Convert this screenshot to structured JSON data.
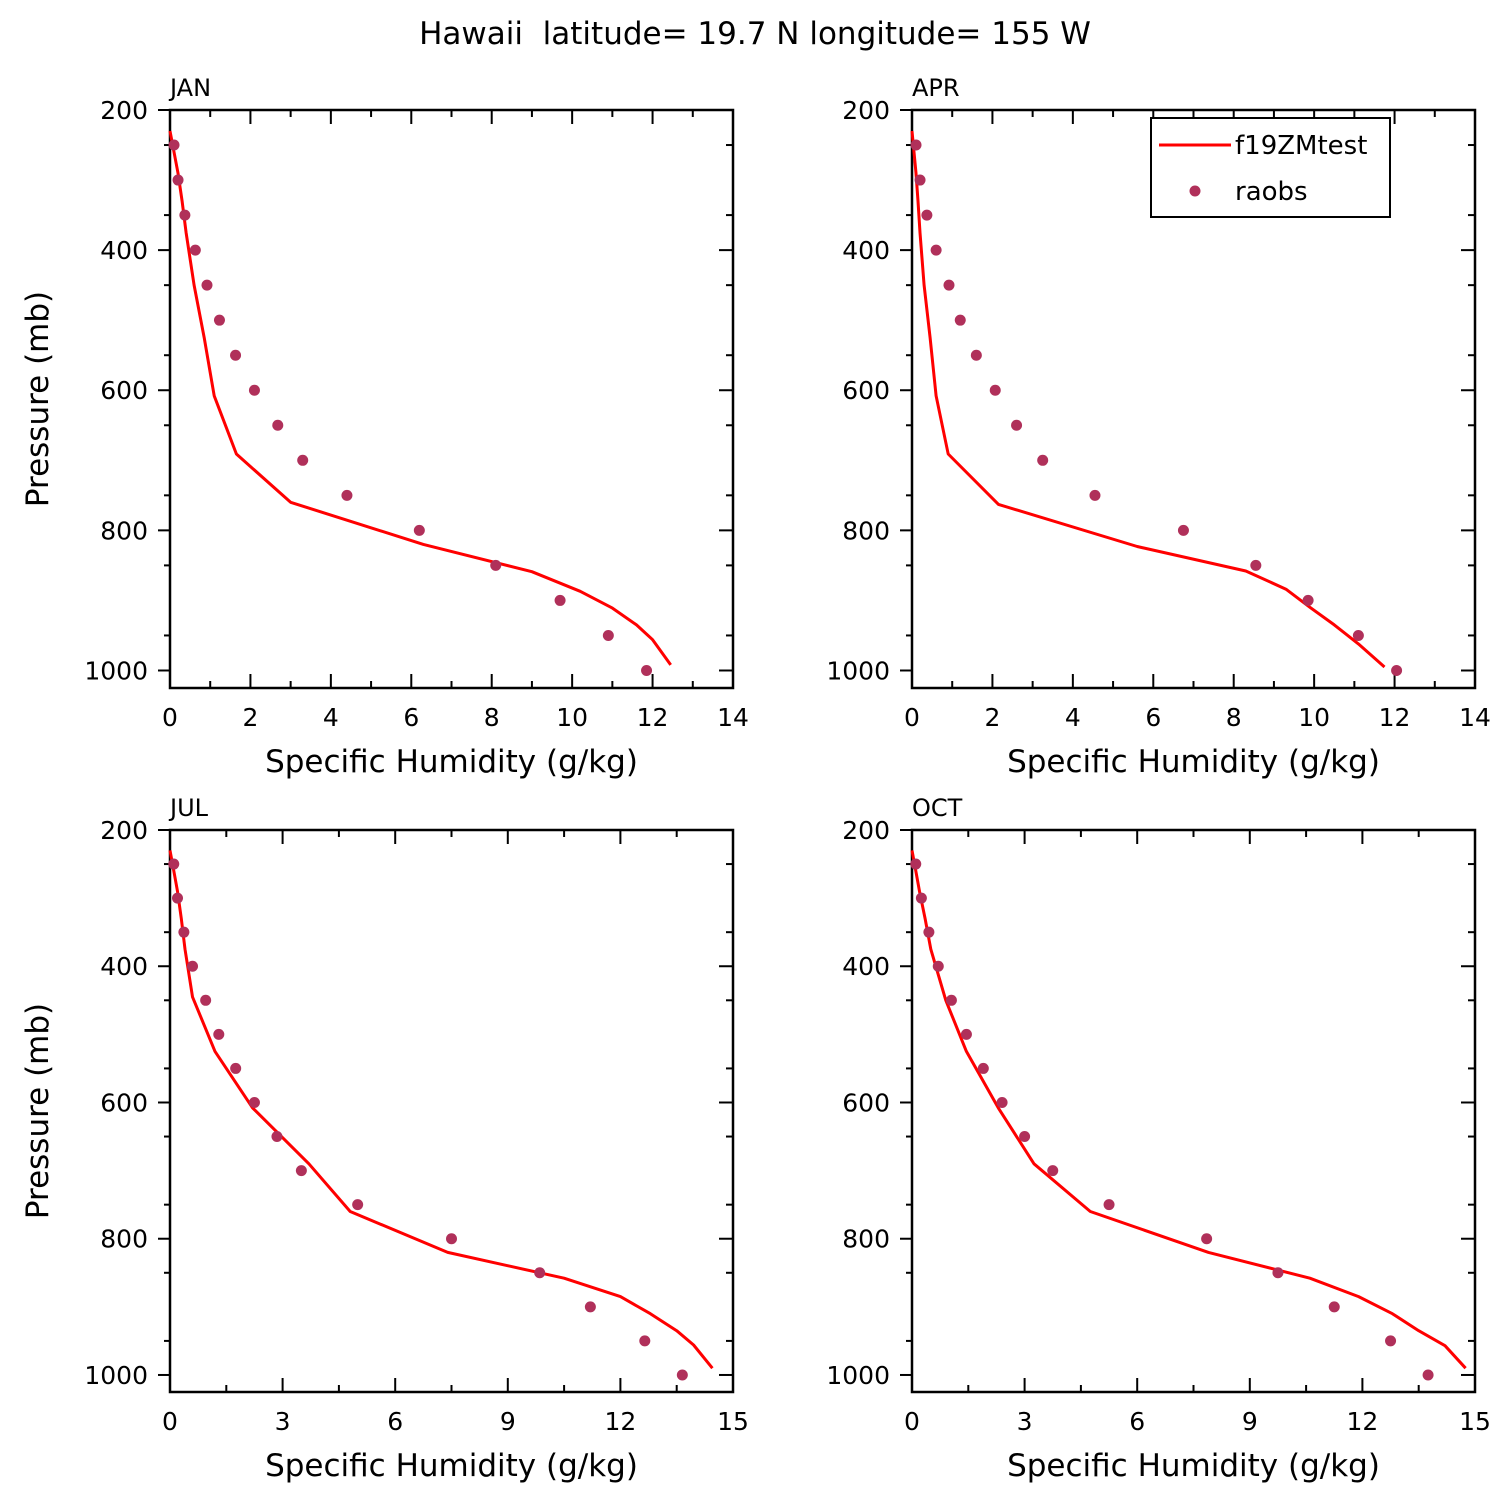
{
  "figure": {
    "title": "Hawaii  latitude= 19.7 N longitude= 155 W"
  },
  "legend": {
    "placement": "top-right of APR panel",
    "entries": [
      {
        "label": "f19ZMtest",
        "kind": "line",
        "color": "#ff0000"
      },
      {
        "label": "raobs",
        "kind": "marker",
        "color": "#b0305a"
      }
    ]
  },
  "chart_data": [
    {
      "type": "line",
      "panel": "JAN",
      "title": "JAN",
      "xlabel": "Specific Humidity (g/kg)",
      "ylabel": "Pressure (mb)",
      "xlim": [
        0,
        14
      ],
      "ylim": [
        1025,
        200
      ],
      "y_inverted": true,
      "xticks": [
        0,
        2,
        4,
        6,
        8,
        10,
        12,
        14
      ],
      "yticks": [
        200,
        400,
        600,
        800,
        1000
      ],
      "series": [
        {
          "name": "f19ZMtest",
          "kind": "line",
          "color": "#ff0000",
          "points": [
            [
              0.0,
              230
            ],
            [
              0.1,
              260
            ],
            [
              0.2,
              290
            ],
            [
              0.3,
              330
            ],
            [
              0.4,
              375
            ],
            [
              0.6,
              450
            ],
            [
              0.85,
              525
            ],
            [
              1.1,
              608
            ],
            [
              1.65,
              691
            ],
            [
              3.0,
              760
            ],
            [
              6.3,
              820
            ],
            [
              9.0,
              859
            ],
            [
              10.2,
              887
            ],
            [
              11.0,
              911
            ],
            [
              11.6,
              935
            ],
            [
              12.0,
              956
            ],
            [
              12.45,
              992
            ]
          ]
        },
        {
          "name": "raobs",
          "kind": "scatter",
          "color": "#b0305a",
          "points": [
            [
              0.1,
              250
            ],
            [
              0.2,
              300
            ],
            [
              0.37,
              350
            ],
            [
              0.63,
              400
            ],
            [
              0.92,
              450
            ],
            [
              1.23,
              500
            ],
            [
              1.63,
              550
            ],
            [
              2.1,
              600
            ],
            [
              2.68,
              650
            ],
            [
              3.3,
              700
            ],
            [
              4.4,
              750
            ],
            [
              6.2,
              800
            ],
            [
              8.1,
              850
            ],
            [
              9.7,
              900
            ],
            [
              10.9,
              950
            ],
            [
              11.85,
              1000
            ]
          ]
        }
      ]
    },
    {
      "type": "line",
      "panel": "APR",
      "title": "APR",
      "xlabel": "Specific Humidity (g/kg)",
      "ylabel": "",
      "xlim": [
        0,
        14
      ],
      "ylim": [
        1025,
        200
      ],
      "y_inverted": true,
      "xticks": [
        0,
        2,
        4,
        6,
        8,
        10,
        12,
        14
      ],
      "yticks": [
        200,
        400,
        600,
        800,
        1000
      ],
      "series": [
        {
          "name": "f19ZMtest",
          "kind": "line",
          "color": "#ff0000",
          "points": [
            [
              0.0,
              230
            ],
            [
              0.05,
              260
            ],
            [
              0.1,
              290
            ],
            [
              0.15,
              330
            ],
            [
              0.2,
              375
            ],
            [
              0.3,
              450
            ],
            [
              0.45,
              525
            ],
            [
              0.6,
              608
            ],
            [
              0.9,
              691
            ],
            [
              2.15,
              763
            ],
            [
              5.6,
              823
            ],
            [
              8.3,
              858
            ],
            [
              9.3,
              884
            ],
            [
              9.9,
              910
            ],
            [
              10.5,
              935
            ],
            [
              11.1,
              962
            ],
            [
              11.75,
              995
            ]
          ]
        },
        {
          "name": "raobs",
          "kind": "scatter",
          "color": "#b0305a",
          "points": [
            [
              0.1,
              250
            ],
            [
              0.2,
              300
            ],
            [
              0.37,
              350
            ],
            [
              0.6,
              400
            ],
            [
              0.92,
              450
            ],
            [
              1.2,
              500
            ],
            [
              1.6,
              550
            ],
            [
              2.07,
              600
            ],
            [
              2.6,
              650
            ],
            [
              3.25,
              700
            ],
            [
              4.55,
              750
            ],
            [
              6.75,
              800
            ],
            [
              8.55,
              850
            ],
            [
              9.85,
              900
            ],
            [
              11.1,
              950
            ],
            [
              12.05,
              1000
            ]
          ]
        }
      ]
    },
    {
      "type": "line",
      "panel": "JUL",
      "title": "JUL",
      "xlabel": "Specific Humidity (g/kg)",
      "ylabel": "Pressure (mb)",
      "xlim": [
        0,
        15
      ],
      "ylim": [
        1025,
        200
      ],
      "y_inverted": true,
      "xticks": [
        0,
        3,
        6,
        9,
        12,
        15
      ],
      "yticks": [
        200,
        400,
        600,
        800,
        1000
      ],
      "series": [
        {
          "name": "f19ZMtest",
          "kind": "line",
          "color": "#ff0000",
          "points": [
            [
              0.0,
              230
            ],
            [
              0.1,
              260
            ],
            [
              0.2,
              290
            ],
            [
              0.3,
              330
            ],
            [
              0.4,
              375
            ],
            [
              0.6,
              445
            ],
            [
              1.2,
              525
            ],
            [
              2.2,
              608
            ],
            [
              3.7,
              690
            ],
            [
              4.8,
              760
            ],
            [
              7.4,
              820
            ],
            [
              10.5,
              858
            ],
            [
              12.0,
              885
            ],
            [
              12.8,
              910
            ],
            [
              13.5,
              935
            ],
            [
              13.95,
              956
            ],
            [
              14.45,
              990
            ]
          ]
        },
        {
          "name": "raobs",
          "kind": "scatter",
          "color": "#b0305a",
          "points": [
            [
              0.1,
              250
            ],
            [
              0.2,
              300
            ],
            [
              0.37,
              350
            ],
            [
              0.6,
              400
            ],
            [
              0.95,
              450
            ],
            [
              1.3,
              500
            ],
            [
              1.75,
              550
            ],
            [
              2.25,
              600
            ],
            [
              2.85,
              650
            ],
            [
              3.5,
              700
            ],
            [
              5.0,
              750
            ],
            [
              7.5,
              800
            ],
            [
              9.85,
              850
            ],
            [
              11.2,
              900
            ],
            [
              12.65,
              950
            ],
            [
              13.65,
              1000
            ]
          ]
        }
      ]
    },
    {
      "type": "line",
      "panel": "OCT",
      "title": "OCT",
      "xlabel": "Specific Humidity (g/kg)",
      "ylabel": "",
      "xlim": [
        0,
        15
      ],
      "ylim": [
        1025,
        200
      ],
      "y_inverted": true,
      "xticks": [
        0,
        3,
        6,
        9,
        12,
        15
      ],
      "yticks": [
        200,
        400,
        600,
        800,
        1000
      ],
      "series": [
        {
          "name": "f19ZMtest",
          "kind": "line",
          "color": "#ff0000",
          "points": [
            [
              0.0,
              230
            ],
            [
              0.1,
              260
            ],
            [
              0.2,
              290
            ],
            [
              0.35,
              330
            ],
            [
              0.5,
              375
            ],
            [
              0.9,
              450
            ],
            [
              1.45,
              525
            ],
            [
              2.3,
              608
            ],
            [
              3.25,
              690
            ],
            [
              4.75,
              760
            ],
            [
              7.9,
              820
            ],
            [
              10.6,
              858
            ],
            [
              11.9,
              885
            ],
            [
              12.8,
              910
            ],
            [
              13.5,
              935
            ],
            [
              14.2,
              957
            ],
            [
              14.75,
              990
            ]
          ]
        },
        {
          "name": "raobs",
          "kind": "scatter",
          "color": "#b0305a",
          "points": [
            [
              0.1,
              250
            ],
            [
              0.25,
              300
            ],
            [
              0.45,
              350
            ],
            [
              0.7,
              400
            ],
            [
              1.05,
              450
            ],
            [
              1.45,
              500
            ],
            [
              1.9,
              550
            ],
            [
              2.4,
              600
            ],
            [
              3.0,
              650
            ],
            [
              3.75,
              700
            ],
            [
              5.25,
              750
            ],
            [
              7.85,
              800
            ],
            [
              9.75,
              850
            ],
            [
              11.25,
              900
            ],
            [
              12.75,
              950
            ],
            [
              13.75,
              1000
            ]
          ]
        }
      ]
    }
  ]
}
